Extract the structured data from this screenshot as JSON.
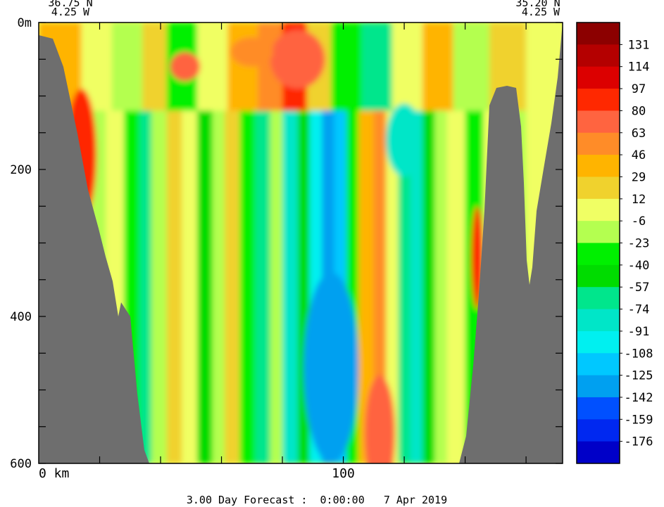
{
  "header": {
    "left_lat": "36.75 N",
    "left_lon": "4.25 W",
    "right_lat": "35.20 N",
    "right_lon": "4.25 W"
  },
  "footer": {
    "forecast": "3.00 Day Forecast :  0:00:00   7 Apr 2019"
  },
  "chart_data": {
    "type": "heatmap",
    "xlabel": "km",
    "x_ticks": [
      {
        "value": 0,
        "label": "0 km"
      },
      {
        "value": 100,
        "label": "100"
      }
    ],
    "x_range_km": [
      0,
      172
    ],
    "y_ticks": [
      {
        "value": 0,
        "label": "0m"
      },
      {
        "value": 200,
        "label": "200"
      },
      {
        "value": 400,
        "label": "400"
      },
      {
        "value": 600,
        "label": "600"
      }
    ],
    "y_range_m": [
      0,
      600
    ],
    "y_inverted": true,
    "colorbar": {
      "labels": [
        "131",
        "114",
        "97",
        "80",
        "63",
        "46",
        "29",
        "12",
        "-6",
        "-23",
        "-40",
        "-57",
        "-74",
        "-91",
        "-108",
        "-125",
        "-142",
        "-159",
        "-176"
      ],
      "colors": [
        "#8c0000",
        "#b40000",
        "#dc0000",
        "#ff2800",
        "#ff6440",
        "#ff8c28",
        "#ffb400",
        "#f0d22d",
        "#f0ff64",
        "#b4ff50",
        "#00f000",
        "#00dc00",
        "#00e68c",
        "#00e6c8",
        "#00f0f0",
        "#00c8ff",
        "#00a0f0",
        "#0050ff",
        "#0028f0",
        "#0000c8"
      ]
    },
    "bathymetry_land_color": "#6e6e6e"
  }
}
